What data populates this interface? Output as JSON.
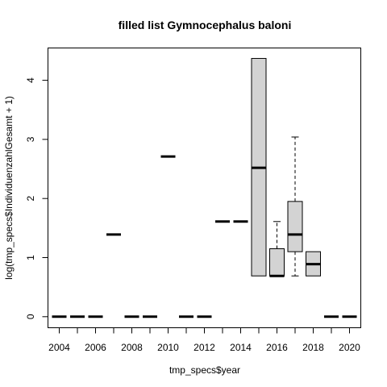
{
  "chart_data": {
    "type": "boxplot",
    "title": "filled list Gymnocephalus baloni",
    "xlabel": "tmp_specs$year",
    "ylabel": "log(tmp_specs$IndividuenzahlGesamt + 1)",
    "categories": [
      "2004",
      "2005",
      "2006",
      "2007",
      "2008",
      "2009",
      "2010",
      "2011",
      "2012",
      "2013",
      "2014",
      "2015",
      "2016",
      "2017",
      "2018",
      "2019",
      "2020"
    ],
    "x_tick_labels": [
      "2004",
      "2006",
      "2008",
      "2010",
      "2012",
      "2014",
      "2016",
      "2018",
      "2020"
    ],
    "y_ticks": [
      "0",
      "1",
      "2",
      "3",
      "4"
    ],
    "ylim": [
      -0.18,
      4.54
    ],
    "grid": false,
    "box_fill": "#d3d3d3",
    "boxes": [
      {
        "year": "2004",
        "min": 0,
        "q1": 0,
        "median": 0,
        "q3": 0,
        "max": 0
      },
      {
        "year": "2005",
        "min": 0,
        "q1": 0,
        "median": 0,
        "q3": 0,
        "max": 0
      },
      {
        "year": "2006",
        "min": 0,
        "q1": 0,
        "median": 0,
        "q3": 0,
        "max": 0
      },
      {
        "year": "2007",
        "min": 1.39,
        "q1": 1.39,
        "median": 1.39,
        "q3": 1.39,
        "max": 1.39
      },
      {
        "year": "2008",
        "min": 0,
        "q1": 0,
        "median": 0,
        "q3": 0,
        "max": 0
      },
      {
        "year": "2009",
        "min": 0,
        "q1": 0,
        "median": 0,
        "q3": 0,
        "max": 0
      },
      {
        "year": "2010",
        "min": 2.71,
        "q1": 2.71,
        "median": 2.71,
        "q3": 2.71,
        "max": 2.71
      },
      {
        "year": "2011",
        "min": 0,
        "q1": 0,
        "median": 0,
        "q3": 0,
        "max": 0
      },
      {
        "year": "2012",
        "min": 0,
        "q1": 0,
        "median": 0,
        "q3": 0,
        "max": 0
      },
      {
        "year": "2013",
        "min": 1.61,
        "q1": 1.61,
        "median": 1.61,
        "q3": 1.61,
        "max": 1.61
      },
      {
        "year": "2014",
        "min": 1.61,
        "q1": 1.61,
        "median": 1.61,
        "q3": 1.61,
        "max": 1.61
      },
      {
        "year": "2015",
        "min": 0.69,
        "q1": 0.69,
        "median": 2.52,
        "q3": 4.37,
        "max": 4.37
      },
      {
        "year": "2016",
        "min": 0.69,
        "q1": 0.69,
        "median": 0.69,
        "q3": 1.15,
        "max": 1.61
      },
      {
        "year": "2017",
        "min": 0.69,
        "q1": 1.1,
        "median": 1.39,
        "q3": 1.95,
        "max": 3.04
      },
      {
        "year": "2018",
        "min": 0.69,
        "q1": 0.69,
        "median": 0.89,
        "q3": 1.1,
        "max": 1.1
      },
      {
        "year": "2019",
        "min": 0,
        "q1": 0,
        "median": 0,
        "q3": 0,
        "max": 0
      },
      {
        "year": "2020",
        "min": 0,
        "q1": 0,
        "median": 0,
        "q3": 0,
        "max": 0
      }
    ]
  }
}
